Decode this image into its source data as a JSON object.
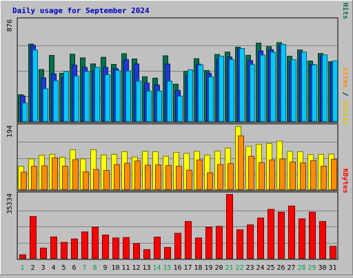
{
  "chart_data": {
    "type": "bar",
    "title": "Daily usage for September 2024",
    "categories": [
      "1",
      "2",
      "3",
      "4",
      "5",
      "6",
      "7",
      "8",
      "9",
      "10",
      "11",
      "12",
      "13",
      "14",
      "15",
      "16",
      "17",
      "18",
      "19",
      "20",
      "21",
      "22",
      "23",
      "24",
      "25",
      "26",
      "27",
      "28",
      "29",
      "30",
      "31"
    ],
    "weekend_days": [
      "1",
      "7",
      "8",
      "14",
      "15",
      "21",
      "22",
      "28",
      "29"
    ],
    "panels": [
      {
        "id": "hits",
        "max_label": "876",
        "ylim": [
          0,
          876
        ],
        "series": [
          {
            "name": "Hits",
            "color": "#006f4e",
            "values": [
              236,
              671,
              453,
              574,
              420,
              584,
              553,
              501,
              558,
              497,
              589,
              544,
              391,
              379,
              571,
              327,
              436,
              546,
              444,
              582,
              603,
              645,
              575,
              680,
              650,
              684,
              567,
              621,
              526,
              591,
              520
            ]
          },
          {
            "name": "Files",
            "color": "#1a3ad6",
            "values": [
              226,
              660,
              381,
              415,
              384,
              490,
              471,
              445,
              471,
              460,
              538,
              501,
              336,
              319,
              500,
              273,
              401,
              499,
              420,
              541,
              560,
              632,
              529,
              612,
              623,
              657,
              521,
              597,
              496,
              572,
              512
            ]
          },
          {
            "name": "Pages",
            "color": "#00c8ff",
            "values": [
              165,
              620,
              287,
              357,
              436,
              396,
              436,
              473,
              408,
              444,
              440,
              353,
              268,
              268,
              352,
              224,
              450,
              492,
              389,
              567,
              539,
              633,
              495,
              577,
              602,
              669,
              537,
              603,
              493,
              578,
              527
            ]
          }
        ],
        "labels": [
          {
            "text": "Pages",
            "color": "#00b0d0"
          },
          {
            "text": " / ",
            "color": "#000000"
          },
          {
            "text": "Files",
            "color": "#1a3ad6"
          },
          {
            "text": " / ",
            "color": "#000000"
          },
          {
            "text": "Hits",
            "color": "#006f4e"
          }
        ]
      },
      {
        "id": "visits",
        "max_label": "194",
        "ylim": [
          0,
          194
        ],
        "series": [
          {
            "name": "Visits",
            "color": "#ffff00",
            "values": [
              73,
              95,
              106,
              109,
              100,
              123,
              95,
              123,
              107,
              109,
              117,
              101,
              118,
              117,
              103,
              115,
              112,
              118,
              107,
              119,
              128,
              194,
              133,
              139,
              142,
              149,
              118,
              117,
              108,
              109,
              110
            ]
          },
          {
            "name": "Sites",
            "color": "#ff8c00",
            "values": [
              55,
              73,
              74,
              98,
              73,
              93,
              56,
              63,
              60,
              78,
              82,
              89,
              76,
              77,
              75,
              73,
              61,
              92,
              53,
              78,
              81,
              165,
              103,
              84,
              92,
              95,
              86,
              83,
              90,
              73,
              94
            ]
          }
        ],
        "labels": [
          {
            "text": "Sites",
            "color": "#ff8c00"
          },
          {
            "text": " / ",
            "color": "#000000"
          },
          {
            "text": "Visits",
            "color": "#e8c000"
          }
        ]
      },
      {
        "id": "kbytes",
        "max_label": "35334",
        "ylim": [
          0,
          35334
        ],
        "series": [
          {
            "name": "KBytes",
            "color": "#ff0000",
            "values": [
              2356,
              23264,
              6020,
              12082,
              9125,
              11000,
              14847,
              17430,
              13140,
              11532,
              11764,
              8486,
              5186,
              12000,
              6370,
              14100,
              20536,
              11532,
              17430,
              17870,
              35334,
              16000,
              18684,
              22400,
              27150,
              25632,
              29000,
              22000,
              25632,
              20536,
              7000
            ]
          }
        ],
        "labels": [
          {
            "text": "KBytes",
            "color": "#ff0000"
          }
        ]
      }
    ]
  }
}
